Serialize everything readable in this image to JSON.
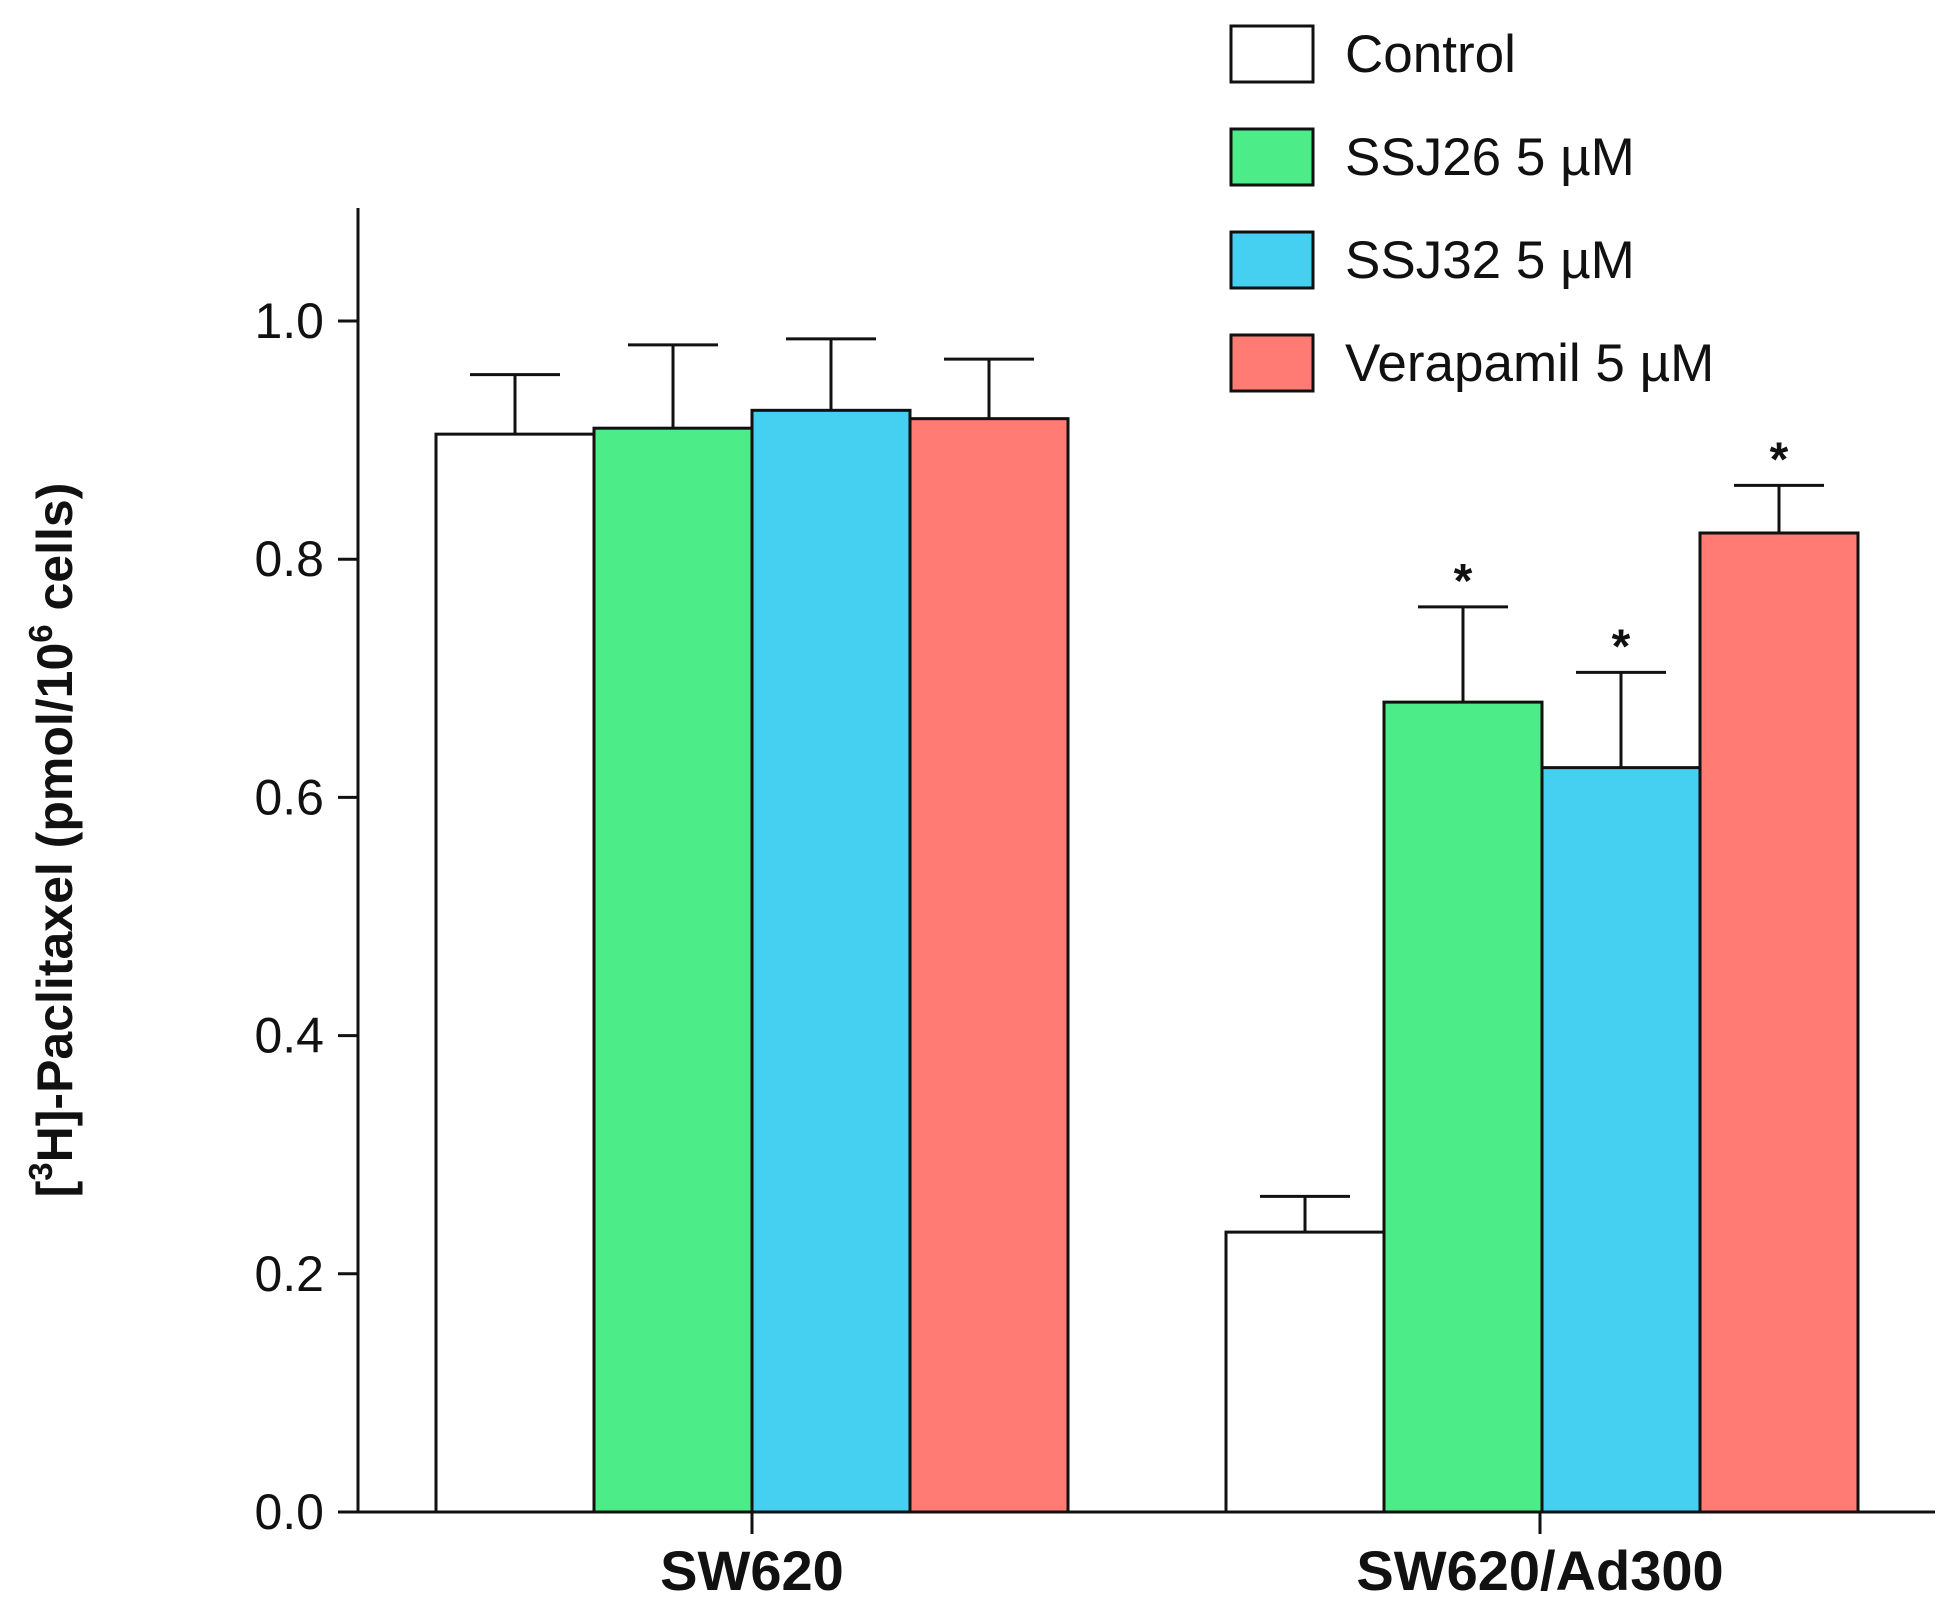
{
  "chart_data": {
    "type": "bar",
    "title": "",
    "xlabel": "",
    "ylabel": {
      "prefix": "[",
      "sup1": "3",
      "middle": "H]-Paclitaxel (pmol/10",
      "sup2": "6",
      "suffix": " cells)"
    },
    "ylim": [
      0,
      1.1
    ],
    "yticks": [
      0.0,
      0.2,
      0.4,
      0.6,
      0.8,
      1.0
    ],
    "ytick_labels": [
      "0.0",
      "0.2",
      "0.4",
      "0.6",
      "0.8",
      "1.0"
    ],
    "categories": [
      "SW620",
      "SW620/Ad300"
    ],
    "series": [
      {
        "name": "Control",
        "color": "#ffffff",
        "values": [
          0.905,
          0.235
        ],
        "errors": [
          0.05,
          0.03
        ],
        "significant": [
          false,
          false
        ]
      },
      {
        "name": "SSJ26 5 µM",
        "color": "#4ced88",
        "values": [
          0.91,
          0.68
        ],
        "errors": [
          0.07,
          0.08
        ],
        "significant": [
          false,
          true
        ]
      },
      {
        "name": "SSJ32 5 µM",
        "color": "#45d0f2",
        "values": [
          0.925,
          0.625
        ],
        "errors": [
          0.06,
          0.08
        ],
        "significant": [
          false,
          true
        ]
      },
      {
        "name": "Verapamil 5 µM",
        "color": "#ff7b74",
        "values": [
          0.918,
          0.822
        ],
        "errors": [
          0.05,
          0.04
        ],
        "significant": [
          false,
          true
        ]
      }
    ],
    "significance_marker": "*",
    "legend": "top-right"
  }
}
